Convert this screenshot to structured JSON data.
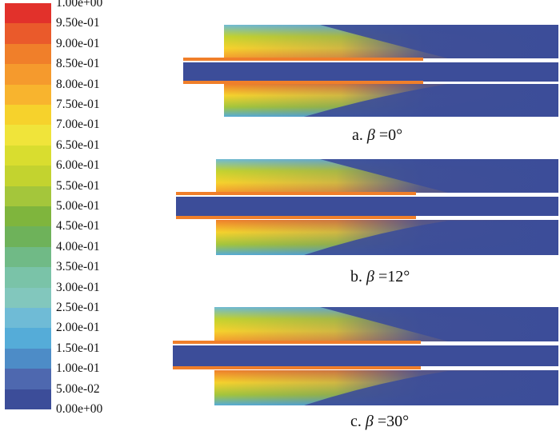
{
  "legend": {
    "ticks": [
      "1.00e+00",
      "9.50e-01",
      "9.00e-01",
      "8.50e-01",
      "8.00e-01",
      "7.50e-01",
      "7.00e-01",
      "6.50e-01",
      "6.00e-01",
      "5.50e-01",
      "5.00e-01",
      "4.50e-01",
      "4.00e-01",
      "3.50e-01",
      "3.00e-01",
      "2.50e-01",
      "2.00e-01",
      "1.50e-01",
      "1.00e-01",
      "5.00e-02",
      "0.00e+00"
    ],
    "colors": [
      "#e2312b",
      "#ea5a2b",
      "#f07f2a",
      "#f59a2d",
      "#f8b42e",
      "#f6d22c",
      "#f0e43a",
      "#d9dd2f",
      "#c3d32f",
      "#a4c63b",
      "#7fb53d",
      "#6eb25a",
      "#70ba86",
      "#7ac3a8",
      "#82c7bd",
      "#6fbbd6",
      "#55acd8",
      "#4d8cc7",
      "#4e68af",
      "#3c4d99"
    ]
  },
  "panels": [
    {
      "label": "a.",
      "beta_symbol": "β",
      "equals": "=",
      "angle": "0°"
    },
    {
      "label": "b.",
      "beta_symbol": "β",
      "equals": "=",
      "angle": "12°"
    },
    {
      "label": "c.",
      "beta_symbol": "β",
      "equals": "=",
      "angle": "30°"
    }
  ]
}
